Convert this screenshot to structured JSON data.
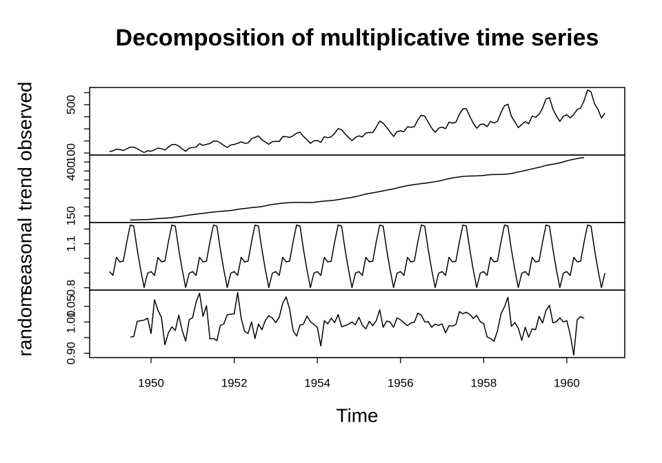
{
  "chart_data": {
    "type": "line",
    "title": "Decomposition of multiplicative time series",
    "xlabel": "Time",
    "xlim": [
      1948.523,
      1961.394
    ],
    "xticks": [
      1950,
      1952,
      1954,
      1956,
      1958,
      1960
    ],
    "x": [
      1949,
      1949.083,
      1949.167,
      1949.25,
      1949.333,
      1949.417,
      1949.5,
      1949.583,
      1949.667,
      1949.75,
      1949.833,
      1949.917,
      1950,
      1950.083,
      1950.167,
      1950.25,
      1950.333,
      1950.417,
      1950.5,
      1950.583,
      1950.667,
      1950.75,
      1950.833,
      1950.917,
      1951,
      1951.083,
      1951.167,
      1951.25,
      1951.333,
      1951.417,
      1951.5,
      1951.583,
      1951.667,
      1951.75,
      1951.833,
      1951.917,
      1952,
      1952.083,
      1952.167,
      1952.25,
      1952.333,
      1952.417,
      1952.5,
      1952.583,
      1952.667,
      1952.75,
      1952.833,
      1952.917,
      1953,
      1953.083,
      1953.167,
      1953.25,
      1953.333,
      1953.417,
      1953.5,
      1953.583,
      1953.667,
      1953.75,
      1953.833,
      1953.917,
      1954,
      1954.083,
      1954.167,
      1954.25,
      1954.333,
      1954.417,
      1954.5,
      1954.583,
      1954.667,
      1954.75,
      1954.833,
      1954.917,
      1955,
      1955.083,
      1955.167,
      1955.25,
      1955.333,
      1955.417,
      1955.5,
      1955.583,
      1955.667,
      1955.75,
      1955.833,
      1955.917,
      1956,
      1956.083,
      1956.167,
      1956.25,
      1956.333,
      1956.417,
      1956.5,
      1956.583,
      1956.667,
      1956.75,
      1956.833,
      1956.917,
      1957,
      1957.083,
      1957.167,
      1957.25,
      1957.333,
      1957.417,
      1957.5,
      1957.583,
      1957.667,
      1957.75,
      1957.833,
      1957.917,
      1958,
      1958.083,
      1958.167,
      1958.25,
      1958.333,
      1958.417,
      1958.5,
      1958.583,
      1958.667,
      1958.75,
      1958.833,
      1958.917,
      1959,
      1959.083,
      1959.167,
      1959.25,
      1959.333,
      1959.417,
      1959.5,
      1959.583,
      1959.667,
      1959.75,
      1959.833,
      1959.917,
      1960,
      1960.083,
      1960.167,
      1960.25,
      1960.333,
      1960.417,
      1960.5,
      1960.583,
      1960.667,
      1960.75,
      1960.833,
      1960.917
    ],
    "color": "#000000",
    "panels": [
      {
        "ylabel": "observed",
        "ylim": [
          83.3,
          642.7
        ],
        "yticks": [
          100,
          500
        ],
        "yticks_minor": [
          200,
          300,
          400,
          600
        ],
        "values": [
          112,
          118,
          132,
          129,
          121,
          135,
          148,
          148,
          136,
          119,
          104,
          118,
          115,
          126,
          141,
          135,
          125,
          149,
          170,
          170,
          158,
          133,
          114,
          140,
          145,
          150,
          178,
          163,
          172,
          178,
          199,
          199,
          184,
          162,
          146,
          166,
          171,
          180,
          193,
          181,
          183,
          218,
          230,
          242,
          209,
          191,
          172,
          194,
          196,
          196,
          236,
          235,
          229,
          243,
          264,
          272,
          237,
          211,
          180,
          201,
          204,
          188,
          235,
          227,
          234,
          264,
          302,
          293,
          259,
          229,
          203,
          229,
          242,
          233,
          267,
          269,
          270,
          315,
          364,
          347,
          312,
          274,
          237,
          278,
          284,
          277,
          317,
          313,
          318,
          374,
          413,
          405,
          355,
          306,
          271,
          306,
          315,
          301,
          356,
          348,
          355,
          422,
          465,
          467,
          404,
          347,
          305,
          336,
          340,
          318,
          362,
          348,
          363,
          435,
          491,
          505,
          404,
          359,
          310,
          337,
          360,
          342,
          406,
          396,
          420,
          472,
          548,
          559,
          463,
          407,
          362,
          405,
          417,
          391,
          419,
          461,
          472,
          535,
          622,
          606,
          508,
          461,
          390,
          432
        ]
      },
      {
        "ylabel": "trend",
        "ylim": [
          112.9,
          489.0
        ],
        "yticks": [
          150,
          400
        ],
        "yticks_minor": [
          200,
          250,
          300,
          350,
          450
        ],
        "values": [
          null,
          null,
          null,
          null,
          null,
          null,
          126.79,
          127.25,
          127.96,
          128.58,
          129.0,
          129.75,
          131.25,
          133.08,
          134.92,
          136.42,
          137.42,
          138.75,
          140.92,
          143.17,
          145.71,
          148.42,
          151.54,
          154.71,
          157.13,
          159.54,
          161.83,
          164.13,
          166.67,
          169.08,
          171.25,
          173.58,
          175.46,
          176.83,
          178.04,
          180.17,
          183.13,
          186.21,
          189.04,
          191.29,
          193.58,
          195.83,
          198.04,
          199.75,
          202.21,
          206.25,
          210.42,
          213.38,
          215.83,
          218.5,
          220.92,
          222.92,
          224.08,
          224.71,
          225.33,
          225.33,
          224.96,
          224.58,
          224.46,
          225.54,
          228.0,
          230.46,
          232.25,
          233.92,
          235.63,
          237.75,
          240.5,
          243.96,
          247.17,
          250.25,
          253.5,
          257.13,
          261.83,
          266.67,
          271.13,
          275.21,
          278.5,
          281.96,
          285.75,
          289.33,
          293.25,
          297.17,
          301.0,
          305.46,
          309.96,
          314.42,
          318.63,
          321.75,
          324.5,
          327.08,
          329.54,
          331.83,
          334.46,
          337.54,
          340.54,
          344.08,
          348.25,
          353.0,
          357.63,
          361.38,
          364.5,
          367.17,
          369.46,
          371.21,
          372.17,
          372.42,
          372.75,
          373.63,
          375.25,
          377.92,
          379.5,
          380.0,
          380.71,
          380.96,
          381.83,
          383.67,
          386.5,
          390.33,
          394.71,
          398.63,
          402.54,
          407.17,
          411.88,
          416.33,
          420.5,
          425.5,
          430.71,
          435.13,
          437.71,
          440.96,
          445.83,
          450.63,
          456.33,
          461.38,
          465.21,
          469.33,
          472.75,
          475.04,
          null,
          null,
          null,
          null,
          null,
          null
        ]
      },
      {
        "ylabel": "seasonal",
        "ylim": [
          0.784,
          1.244
        ],
        "yticks": [
          0.8,
          1.1
        ],
        "yticks_minor": [
          0.9,
          1.0,
          1.2
        ],
        "values": [
          0.91,
          0.884,
          1.007,
          0.976,
          0.981,
          1.113,
          1.227,
          1.22,
          1.06,
          0.922,
          0.801,
          0.899,
          0.91,
          0.884,
          1.007,
          0.976,
          0.981,
          1.113,
          1.227,
          1.22,
          1.06,
          0.922,
          0.801,
          0.899,
          0.91,
          0.884,
          1.007,
          0.976,
          0.981,
          1.113,
          1.227,
          1.22,
          1.06,
          0.922,
          0.801,
          0.899,
          0.91,
          0.884,
          1.007,
          0.976,
          0.981,
          1.113,
          1.227,
          1.22,
          1.06,
          0.922,
          0.801,
          0.899,
          0.91,
          0.884,
          1.007,
          0.976,
          0.981,
          1.113,
          1.227,
          1.22,
          1.06,
          0.922,
          0.801,
          0.899,
          0.91,
          0.884,
          1.007,
          0.976,
          0.981,
          1.113,
          1.227,
          1.22,
          1.06,
          0.922,
          0.801,
          0.899,
          0.91,
          0.884,
          1.007,
          0.976,
          0.981,
          1.113,
          1.227,
          1.22,
          1.06,
          0.922,
          0.801,
          0.899,
          0.91,
          0.884,
          1.007,
          0.976,
          0.981,
          1.113,
          1.227,
          1.22,
          1.06,
          0.922,
          0.801,
          0.899,
          0.91,
          0.884,
          1.007,
          0.976,
          0.981,
          1.113,
          1.227,
          1.22,
          1.06,
          0.922,
          0.801,
          0.899,
          0.91,
          0.884,
          1.007,
          0.976,
          0.981,
          1.113,
          1.227,
          1.22,
          1.06,
          0.922,
          0.801,
          0.899,
          0.91,
          0.884,
          1.007,
          0.976,
          0.981,
          1.113,
          1.227,
          1.22,
          1.06,
          0.922,
          0.801,
          0.899,
          0.91,
          0.884,
          1.007,
          0.976,
          0.981,
          1.113,
          1.227,
          1.22,
          1.06,
          0.922,
          0.801,
          0.899
        ]
      },
      {
        "ylabel": "random",
        "ylim": [
          0.886,
          1.102
        ],
        "yticks": [
          {
            "value": 0.9,
            "label": "0.90"
          },
          {
            "value": 1.0,
            "label": "1.00"
          },
          1.05
        ],
        "yticks_minor": [
          0.95
        ],
        "values": [
          null,
          null,
          null,
          null,
          null,
          null,
          0.952,
          0.953,
          1.002,
          1.004,
          1.006,
          1.012,
          0.963,
          1.071,
          1.037,
          1.014,
          0.927,
          0.965,
          0.984,
          0.973,
          1.022,
          0.972,
          0.939,
          1.007,
          1.014,
          1.064,
          1.092,
          1.018,
          1.052,
          0.946,
          0.947,
          0.94,
          0.989,
          0.994,
          1.023,
          1.025,
          1.026,
          1.094,
          1.013,
          0.97,
          0.963,
          1.0,
          0.947,
          0.993,
          0.975,
          1.005,
          1.02,
          1.012,
          0.998,
          1.015,
          1.06,
          1.08,
          1.041,
          0.972,
          0.955,
          0.99,
          0.993,
          1.019,
          1.001,
          0.992,
          0.983,
          0.923,
          1.004,
          0.994,
          1.012,
          0.998,
          1.024,
          0.985,
          0.988,
          0.993,
          1.0,
          0.991,
          1.015,
          0.989,
          0.978,
          1.002,
          0.988,
          1.004,
          1.039,
          0.983,
          1.003,
          1.0,
          0.983,
          1.013,
          1.007,
          0.997,
          0.988,
          0.997,
          0.999,
          1.028,
          1.022,
          1.0,
          1.001,
          0.983,
          0.993,
          0.989,
          0.994,
          0.965,
          0.988,
          0.987,
          0.992,
          1.033,
          1.026,
          1.031,
          1.024,
          1.011,
          1.021,
          1.001,
          0.995,
          0.952,
          0.947,
          0.938,
          0.972,
          1.026,
          1.048,
          1.079,
          0.986,
          0.998,
          0.98,
          0.941,
          0.983,
          0.951,
          0.978,
          0.975,
          1.018,
          0.997,
          1.037,
          1.053,
          0.997,
          1.001,
          1.013,
          1.0,
          1.004,
          0.959,
          0.894,
          1.007,
          1.017,
          1.012,
          null,
          null,
          null,
          null,
          null,
          null
        ]
      }
    ]
  }
}
